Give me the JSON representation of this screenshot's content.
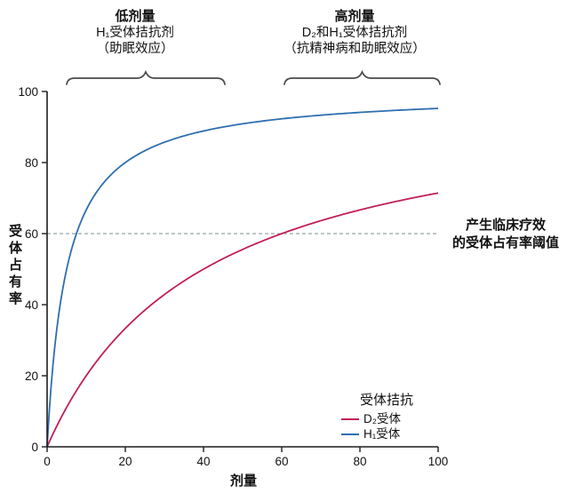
{
  "chart_data": {
    "type": "line",
    "title": "",
    "xlabel": "剂量",
    "ylabel": "受体占有率",
    "xlim": [
      0,
      100
    ],
    "ylim": [
      0,
      100
    ],
    "x_ticks": [
      0,
      20,
      40,
      60,
      80,
      100
    ],
    "y_ticks": [
      0,
      20,
      40,
      60,
      80,
      100
    ],
    "grid": false,
    "axis_color": "#1c1c1c",
    "series": [
      {
        "name": "D₂受体",
        "color": "#c11f55",
        "model": "occupancy = 100 × dose / (dose + Kd)",
        "Kd": 40,
        "x": [
          0,
          10,
          20,
          30,
          40,
          50,
          60,
          70,
          80,
          90,
          100
        ],
        "y": [
          0,
          20,
          33.3,
          42.9,
          50,
          55.6,
          60,
          63.6,
          66.7,
          69.2,
          71.4
        ]
      },
      {
        "name": "H₁受体",
        "color": "#2f6eb0",
        "model": "occupancy = 100 × dose / (dose + Kd)",
        "Kd": 5,
        "x": [
          0,
          10,
          20,
          30,
          40,
          50,
          60,
          70,
          80,
          90,
          100
        ],
        "y": [
          0,
          66.7,
          80,
          85.7,
          88.9,
          90.9,
          92.3,
          93.3,
          94.1,
          94.7,
          95.2
        ]
      }
    ],
    "threshold_line": {
      "value": 60,
      "style": "dashed",
      "color": "#96a8a1"
    },
    "legend": {
      "title": "受体拮抗",
      "position": "bottom-right"
    },
    "brace_color": "#4a4a4a"
  },
  "annotations": {
    "low_dose": {
      "title": "低剂量",
      "lines": [
        "H₁受体拮抗剂",
        "（助眠效应）"
      ]
    },
    "high_dose": {
      "title": "高剂量",
      "lines": [
        "D₂和H₁受体拮抗剂",
        "（抗精神病和助眠效应）"
      ]
    },
    "threshold": {
      "lines": [
        "产生临床疗效",
        "的受体占有率阈值"
      ]
    }
  }
}
